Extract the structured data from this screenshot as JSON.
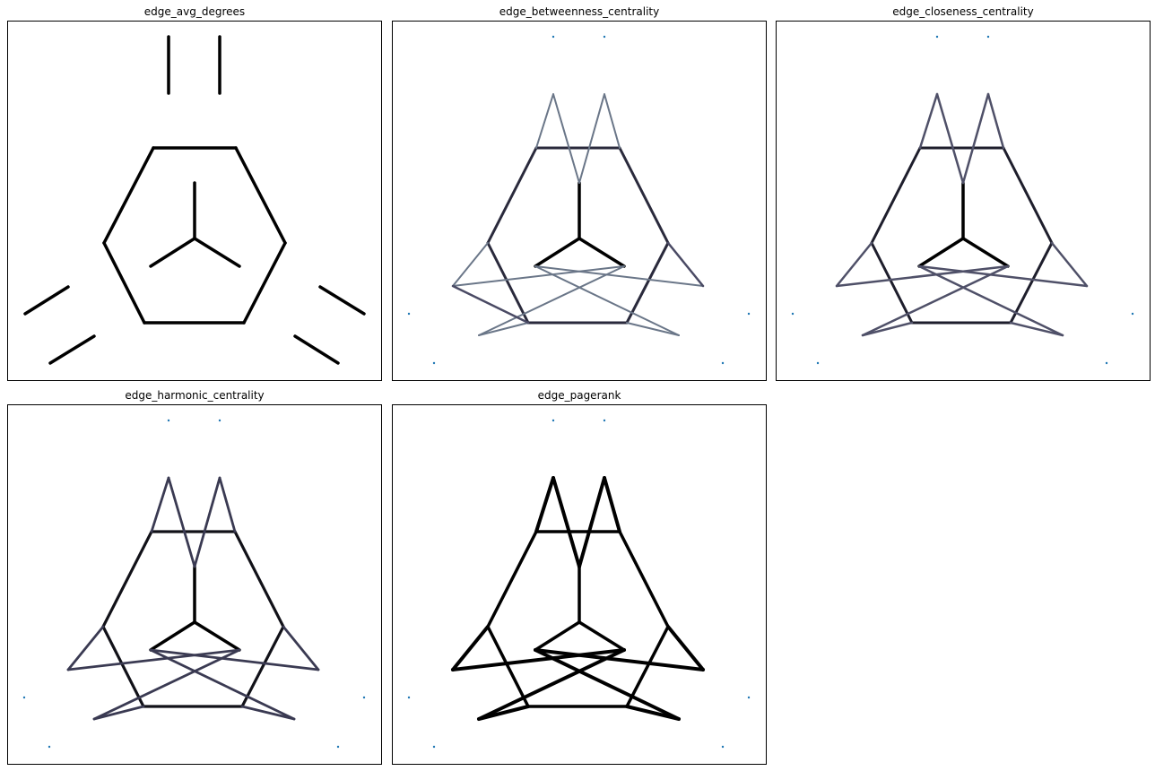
{
  "figure": {
    "panels": [
      {
        "title": "edge_avg_degrees",
        "edges": [
          {
            "a": 5,
            "b": 6,
            "color": "#000000",
            "weight": 3.5
          },
          {
            "a": 7,
            "b": 8,
            "color": "#000000",
            "weight": 3.5
          },
          {
            "a": 9,
            "b": 10,
            "color": "#000000",
            "weight": 3.5
          },
          {
            "a": 11,
            "b": 12,
            "color": "#000000",
            "weight": 3.5
          },
          {
            "a": 13,
            "b": 14,
            "color": "#000000",
            "weight": 3.5
          },
          {
            "a": 15,
            "b": 16,
            "color": "#000000",
            "weight": 3.5
          },
          {
            "a": 17,
            "b": 18,
            "color": "#000000",
            "weight": 3.5
          },
          {
            "a": 18,
            "b": 19,
            "color": "#000000",
            "weight": 3.5
          },
          {
            "a": 19,
            "b": 20,
            "color": "#000000",
            "weight": 3.5
          },
          {
            "a": 20,
            "b": 21,
            "color": "#000000",
            "weight": 3.5
          },
          {
            "a": 21,
            "b": 22,
            "color": "#000000",
            "weight": 3.5
          },
          {
            "a": 22,
            "b": 17,
            "color": "#000000",
            "weight": 3.5
          },
          {
            "a": 0,
            "b": 1,
            "color": "#000000",
            "weight": 3.5
          },
          {
            "a": 0,
            "b": 2,
            "color": "#000000",
            "weight": 3.5
          },
          {
            "a": 0,
            "b": 3,
            "color": "#000000",
            "weight": 3.5
          }
        ],
        "points": []
      },
      {
        "title": "edge_betweenness_centrality",
        "edges": [
          {
            "a": 23,
            "b": 24,
            "color": "#2a2a3c",
            "weight": 3.0
          },
          {
            "a": 24,
            "b": 25,
            "color": "#2a2a3c",
            "weight": 3.0
          },
          {
            "a": 25,
            "b": 26,
            "color": "#2a2a3c",
            "weight": 3.0
          },
          {
            "a": 26,
            "b": 27,
            "color": "#2a2a3c",
            "weight": 3.0
          },
          {
            "a": 27,
            "b": 28,
            "color": "#2a2a3c",
            "weight": 3.0
          },
          {
            "a": 28,
            "b": 23,
            "color": "#2a2a3c",
            "weight": 3.0
          },
          {
            "a": 0,
            "b": 1,
            "color": "#000000",
            "weight": 3.5
          },
          {
            "a": 0,
            "b": 2,
            "color": "#000000",
            "weight": 3.5
          },
          {
            "a": 0,
            "b": 3,
            "color": "#000000",
            "weight": 3.5
          },
          {
            "a": 23,
            "b": 29,
            "color": "#6a7688",
            "weight": 2.0
          },
          {
            "a": 29,
            "b": 1,
            "color": "#6a7688",
            "weight": 2.0
          },
          {
            "a": 1,
            "b": 30,
            "color": "#6a7688",
            "weight": 2.0
          },
          {
            "a": 30,
            "b": 24,
            "color": "#6a7688",
            "weight": 2.0
          },
          {
            "a": 26,
            "b": 32,
            "color": "#6a7688",
            "weight": 2.0
          },
          {
            "a": 32,
            "b": 3,
            "color": "#6a7688",
            "weight": 2.0
          },
          {
            "a": 3,
            "b": 31,
            "color": "#6a7688",
            "weight": 2.0
          },
          {
            "a": 31,
            "b": 25,
            "color": "#6a7688",
            "weight": 2.0
          },
          {
            "a": 27,
            "b": 33,
            "color": "#6a7688",
            "weight": 2.0
          },
          {
            "a": 33,
            "b": 2,
            "color": "#6a7688",
            "weight": 2.0
          },
          {
            "a": 2,
            "b": 34,
            "color": "#6a7688",
            "weight": 2.0
          },
          {
            "a": 34,
            "b": 28,
            "color": "#6a7688",
            "weight": 2.0
          },
          {
            "a": 25,
            "b": 31,
            "color": "#4a4a64",
            "weight": 2.5
          },
          {
            "a": 27,
            "b": 34,
            "color": "#4a4a64",
            "weight": 2.5
          }
        ],
        "points": [
          5,
          7,
          9,
          11,
          13,
          15
        ]
      },
      {
        "title": "edge_closeness_centrality",
        "edges": [
          {
            "a": 23,
            "b": 24,
            "color": "#1e1e2c",
            "weight": 3.0
          },
          {
            "a": 24,
            "b": 25,
            "color": "#1e1e2c",
            "weight": 3.0
          },
          {
            "a": 25,
            "b": 26,
            "color": "#1e1e2c",
            "weight": 3.0
          },
          {
            "a": 26,
            "b": 27,
            "color": "#1e1e2c",
            "weight": 3.0
          },
          {
            "a": 27,
            "b": 28,
            "color": "#1e1e2c",
            "weight": 3.0
          },
          {
            "a": 28,
            "b": 23,
            "color": "#1e1e2c",
            "weight": 3.0
          },
          {
            "a": 0,
            "b": 1,
            "color": "#000000",
            "weight": 3.5
          },
          {
            "a": 0,
            "b": 2,
            "color": "#000000",
            "weight": 3.5
          },
          {
            "a": 0,
            "b": 3,
            "color": "#000000",
            "weight": 3.5
          },
          {
            "a": 23,
            "b": 29,
            "color": "#4f5068",
            "weight": 2.5
          },
          {
            "a": 29,
            "b": 1,
            "color": "#4f5068",
            "weight": 2.5
          },
          {
            "a": 1,
            "b": 30,
            "color": "#4f5068",
            "weight": 2.5
          },
          {
            "a": 30,
            "b": 24,
            "color": "#4f5068",
            "weight": 2.5
          },
          {
            "a": 26,
            "b": 32,
            "color": "#4f5068",
            "weight": 2.5
          },
          {
            "a": 32,
            "b": 3,
            "color": "#4f5068",
            "weight": 2.5
          },
          {
            "a": 3,
            "b": 31,
            "color": "#4f5068",
            "weight": 2.5
          },
          {
            "a": 31,
            "b": 25,
            "color": "#4f5068",
            "weight": 2.5
          },
          {
            "a": 27,
            "b": 33,
            "color": "#4f5068",
            "weight": 2.5
          },
          {
            "a": 33,
            "b": 2,
            "color": "#4f5068",
            "weight": 2.5
          },
          {
            "a": 2,
            "b": 34,
            "color": "#4f5068",
            "weight": 2.5
          },
          {
            "a": 34,
            "b": 28,
            "color": "#4f5068",
            "weight": 2.5
          }
        ],
        "points": [
          5,
          7,
          9,
          11,
          13,
          15
        ]
      },
      {
        "title": "edge_harmonic_centrality",
        "edges": [
          {
            "a": 23,
            "b": 24,
            "color": "#111118",
            "weight": 3.2
          },
          {
            "a": 24,
            "b": 25,
            "color": "#111118",
            "weight": 3.2
          },
          {
            "a": 25,
            "b": 26,
            "color": "#111118",
            "weight": 3.2
          },
          {
            "a": 26,
            "b": 27,
            "color": "#111118",
            "weight": 3.2
          },
          {
            "a": 27,
            "b": 28,
            "color": "#111118",
            "weight": 3.2
          },
          {
            "a": 28,
            "b": 23,
            "color": "#111118",
            "weight": 3.2
          },
          {
            "a": 0,
            "b": 1,
            "color": "#000000",
            "weight": 3.5
          },
          {
            "a": 0,
            "b": 2,
            "color": "#000000",
            "weight": 3.5
          },
          {
            "a": 0,
            "b": 3,
            "color": "#000000",
            "weight": 3.5
          },
          {
            "a": 23,
            "b": 29,
            "color": "#3a3a52",
            "weight": 2.8
          },
          {
            "a": 29,
            "b": 1,
            "color": "#3a3a52",
            "weight": 2.8
          },
          {
            "a": 1,
            "b": 30,
            "color": "#3a3a52",
            "weight": 2.8
          },
          {
            "a": 30,
            "b": 24,
            "color": "#3a3a52",
            "weight": 2.8
          },
          {
            "a": 26,
            "b": 32,
            "color": "#3a3a52",
            "weight": 2.8
          },
          {
            "a": 32,
            "b": 3,
            "color": "#3a3a52",
            "weight": 2.8
          },
          {
            "a": 3,
            "b": 31,
            "color": "#3a3a52",
            "weight": 2.8
          },
          {
            "a": 31,
            "b": 25,
            "color": "#3a3a52",
            "weight": 2.8
          },
          {
            "a": 27,
            "b": 33,
            "color": "#3a3a52",
            "weight": 2.8
          },
          {
            "a": 33,
            "b": 2,
            "color": "#3a3a52",
            "weight": 2.8
          },
          {
            "a": 2,
            "b": 34,
            "color": "#3a3a52",
            "weight": 2.8
          },
          {
            "a": 34,
            "b": 28,
            "color": "#3a3a52",
            "weight": 2.8
          }
        ],
        "points": [
          5,
          7,
          9,
          11,
          13,
          15
        ]
      },
      {
        "title": "edge_pagerank",
        "edges": [
          {
            "a": 23,
            "b": 24,
            "color": "#000000",
            "weight": 3.5
          },
          {
            "a": 24,
            "b": 25,
            "color": "#000000",
            "weight": 3.5
          },
          {
            "a": 25,
            "b": 26,
            "color": "#000000",
            "weight": 3.5
          },
          {
            "a": 26,
            "b": 27,
            "color": "#000000",
            "weight": 3.5
          },
          {
            "a": 27,
            "b": 28,
            "color": "#000000",
            "weight": 3.5
          },
          {
            "a": 28,
            "b": 23,
            "color": "#000000",
            "weight": 3.5
          },
          {
            "a": 0,
            "b": 1,
            "color": "#000000",
            "weight": 3.5
          },
          {
            "a": 0,
            "b": 2,
            "color": "#000000",
            "weight": 3.5
          },
          {
            "a": 0,
            "b": 3,
            "color": "#000000",
            "weight": 3.5
          },
          {
            "a": 23,
            "b": 29,
            "color": "#000000",
            "weight": 4.0
          },
          {
            "a": 29,
            "b": 1,
            "color": "#000000",
            "weight": 4.0
          },
          {
            "a": 1,
            "b": 30,
            "color": "#000000",
            "weight": 4.0
          },
          {
            "a": 30,
            "b": 24,
            "color": "#000000",
            "weight": 4.0
          },
          {
            "a": 26,
            "b": 32,
            "color": "#000000",
            "weight": 4.0
          },
          {
            "a": 32,
            "b": 3,
            "color": "#000000",
            "weight": 4.0
          },
          {
            "a": 3,
            "b": 31,
            "color": "#000000",
            "weight": 4.0
          },
          {
            "a": 31,
            "b": 25,
            "color": "#000000",
            "weight": 4.0
          },
          {
            "a": 27,
            "b": 33,
            "color": "#000000",
            "weight": 4.0
          },
          {
            "a": 33,
            "b": 2,
            "color": "#000000",
            "weight": 4.0
          },
          {
            "a": 2,
            "b": 34,
            "color": "#000000",
            "weight": 4.0
          },
          {
            "a": 34,
            "b": 28,
            "color": "#000000",
            "weight": 4.0
          }
        ],
        "points": [
          5,
          7,
          9,
          11,
          13,
          15
        ]
      }
    ],
    "point_color": "#1f77b4"
  }
}
